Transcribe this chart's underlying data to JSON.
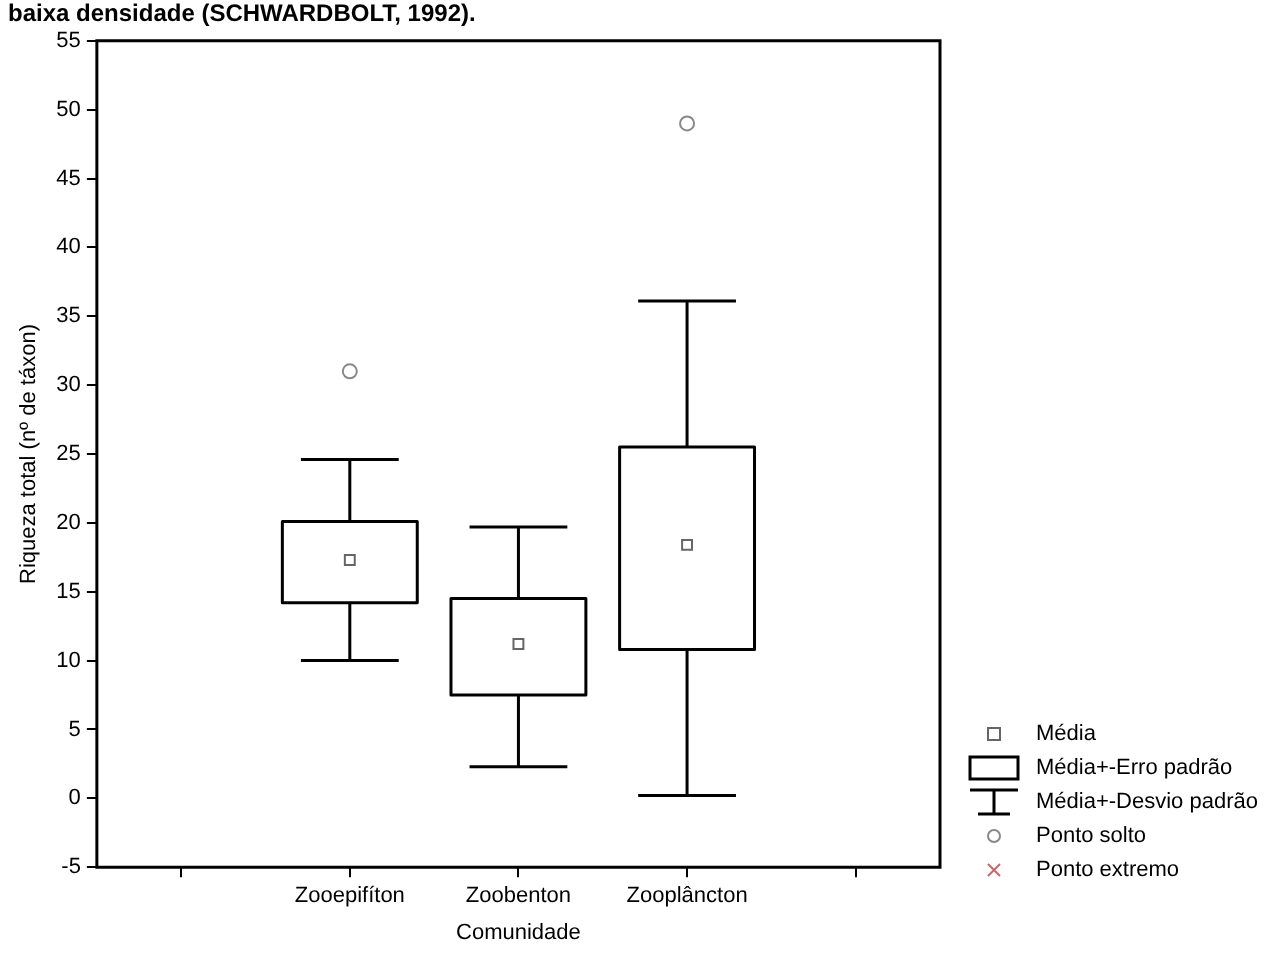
{
  "chart_data": {
    "type": "box",
    "title": "baixa densidade (SCHWARDBOLT, 1992).",
    "xlabel": "Comunidade",
    "ylabel": "Riqueza total (nº de táxon)",
    "categories": [
      null,
      "Zooepifíton",
      "Zoobenton",
      "Zooplâncton",
      null
    ],
    "ylim": [
      -5,
      55
    ],
    "yticks": [
      -5,
      0,
      5,
      10,
      15,
      20,
      25,
      30,
      35,
      40,
      45,
      50,
      55
    ],
    "grid": false,
    "legend": "bottom right",
    "annotations": [
      "Média+-Desvio padrão"
    ],
    "series": [
      {
        "name": "Média",
        "type": "scatter",
        "marker": "square",
        "color": "#666666",
        "values": [
          null,
          17.3,
          11.2,
          18.4,
          null
        ]
      },
      {
        "name": "Média+-Erro padrão",
        "type": "box",
        "color": "#000000",
        "boxes": [
          null,
          {
            "low": 10.0,
            "q1": 14.2,
            "q3": 20.1,
            "high": 24.6
          },
          {
            "low": 2.3,
            "q1": 7.5,
            "q3": 14.5,
            "high": 19.7
          },
          {
            "low": 0.2,
            "q1": 10.8,
            "q3": 25.5,
            "high": 36.1
          },
          null
        ]
      },
      {
        "name": "Ponto solto",
        "type": "scatter",
        "marker": "circle",
        "color": "#888888",
        "values": [
          null,
          31.0,
          null,
          49.0,
          null
        ]
      },
      {
        "name": "Ponto extremo",
        "type": "scatter",
        "marker": "cross",
        "color": "#cc6666",
        "values": [
          null,
          null,
          null,
          null,
          null
        ]
      }
    ]
  }
}
